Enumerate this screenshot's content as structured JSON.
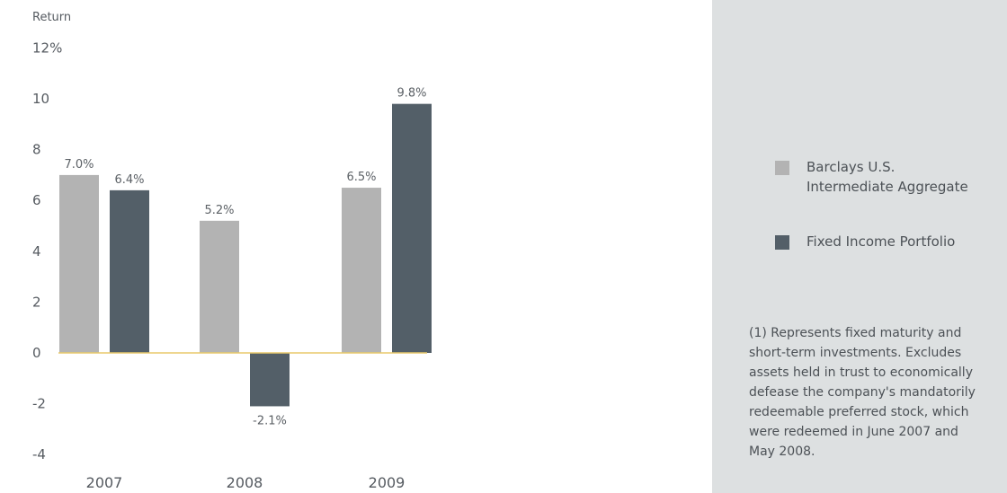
{
  "chart_data": {
    "type": "bar",
    "ylabel": "Return",
    "categories": [
      "2007",
      "2008",
      "2009"
    ],
    "series": [
      {
        "name": "Barclays U.S.\nIntermediate Aggregate",
        "color": "#b3b3b3",
        "values": [
          7.0,
          5.2,
          6.5
        ],
        "labels": [
          "7.0%",
          "5.2%",
          "6.5%"
        ]
      },
      {
        "name": "Fixed Income Portfolio",
        "color": "#535f68",
        "values": [
          6.4,
          -2.1,
          9.8
        ],
        "labels": [
          "6.4%",
          "-2.1%",
          "9.8%"
        ]
      }
    ],
    "ylim": [
      -4,
      12
    ],
    "yticks": [
      {
        "value": 12,
        "label": "12%"
      },
      {
        "value": 10,
        "label": "10"
      },
      {
        "value": 8,
        "label": "8"
      },
      {
        "value": 6,
        "label": "6"
      },
      {
        "value": 4,
        "label": "4"
      },
      {
        "value": 2,
        "label": "2"
      },
      {
        "value": 0,
        "label": "0"
      },
      {
        "value": -2,
        "label": "-2"
      },
      {
        "value": -4,
        "label": "-4"
      }
    ],
    "zero_line_color": "#e8c96a",
    "grid": false,
    "legend_position": "right"
  },
  "footnote": "(1) Represents fixed maturity and\nshort-term investments. Excludes\nassets held in trust to economically\ndefease the company's mandatorily\nredeemable preferred stock, which\nwere redeemed in June 2007 and\nMay 2008."
}
